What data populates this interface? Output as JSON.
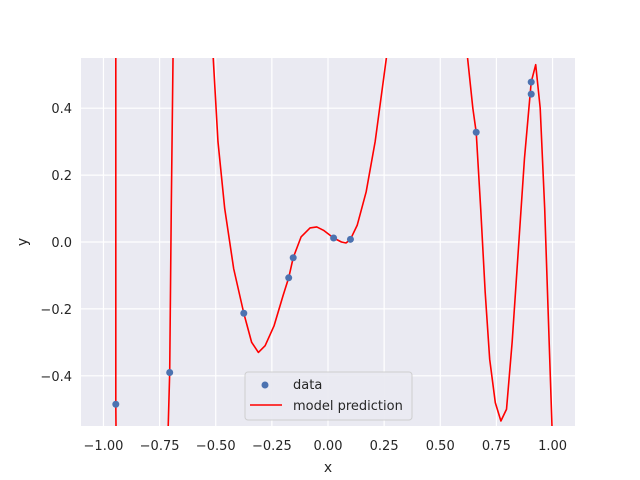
{
  "chart_data": {
    "type": "scatter",
    "title": "",
    "xlabel": "x",
    "ylabel": "y",
    "xlim": [
      -1.1,
      1.1
    ],
    "ylim": [
      -0.55,
      0.55
    ],
    "xticks": [
      -1.0,
      -0.75,
      -0.5,
      -0.25,
      0.0,
      0.25,
      0.5,
      0.75,
      1.0
    ],
    "xtick_labels": [
      "−1.00",
      "−0.75",
      "−0.50",
      "−0.25",
      "0.00",
      "0.25",
      "0.50",
      "0.75",
      "1.00"
    ],
    "yticks": [
      -0.4,
      -0.2,
      0.0,
      0.2,
      0.4
    ],
    "ytick_labels": [
      "−0.4",
      "−0.2",
      "0.0",
      "0.2",
      "0.4"
    ],
    "grid": true,
    "legend_position": "lower-center",
    "series": [
      {
        "name": "data",
        "kind": "scatter",
        "color": "#4c72b0",
        "points": [
          [
            -0.945,
            -0.485
          ],
          [
            -0.705,
            -0.39
          ],
          [
            -0.375,
            -0.213
          ],
          [
            -0.175,
            -0.107
          ],
          [
            -0.155,
            -0.047
          ],
          [
            0.025,
            0.012
          ],
          [
            0.1,
            0.008
          ],
          [
            0.66,
            0.328
          ],
          [
            0.905,
            0.442
          ],
          [
            0.905,
            0.478
          ]
        ]
      },
      {
        "name": "model prediction",
        "kind": "line",
        "color": "#ff0000",
        "points": [
          [
            -0.945,
            0.56
          ],
          [
            -0.945,
            -0.485
          ],
          [
            -0.944,
            -0.56
          ],
          [
            -0.712,
            -0.56
          ],
          [
            -0.705,
            -0.39
          ],
          [
            -0.698,
            0.1
          ],
          [
            -0.69,
            0.56
          ],
          [
            -0.512,
            0.56
          ],
          [
            -0.49,
            0.3
          ],
          [
            -0.46,
            0.1
          ],
          [
            -0.42,
            -0.08
          ],
          [
            -0.375,
            -0.213
          ],
          [
            -0.34,
            -0.3
          ],
          [
            -0.31,
            -0.33
          ],
          [
            -0.28,
            -0.31
          ],
          [
            -0.24,
            -0.25
          ],
          [
            -0.2,
            -0.16
          ],
          [
            -0.175,
            -0.107
          ],
          [
            -0.155,
            -0.047
          ],
          [
            -0.12,
            0.015
          ],
          [
            -0.08,
            0.042
          ],
          [
            -0.05,
            0.045
          ],
          [
            -0.02,
            0.035
          ],
          [
            0.025,
            0.012
          ],
          [
            0.06,
            0.0
          ],
          [
            0.08,
            -0.003
          ],
          [
            0.1,
            0.008
          ],
          [
            0.13,
            0.05
          ],
          [
            0.17,
            0.15
          ],
          [
            0.21,
            0.3
          ],
          [
            0.24,
            0.45
          ],
          [
            0.262,
            0.56
          ],
          [
            0.62,
            0.56
          ],
          [
            0.645,
            0.4
          ],
          [
            0.66,
            0.328
          ],
          [
            0.68,
            0.1
          ],
          [
            0.7,
            -0.15
          ],
          [
            0.72,
            -0.35
          ],
          [
            0.745,
            -0.48
          ],
          [
            0.77,
            -0.535
          ],
          [
            0.795,
            -0.5
          ],
          [
            0.82,
            -0.3
          ],
          [
            0.85,
            0.0
          ],
          [
            0.875,
            0.25
          ],
          [
            0.905,
            0.478
          ],
          [
            0.925,
            0.53
          ],
          [
            0.945,
            0.4
          ],
          [
            0.965,
            0.1
          ],
          [
            0.98,
            -0.2
          ],
          [
            0.995,
            -0.5
          ],
          [
            0.998,
            -0.56
          ]
        ]
      }
    ]
  },
  "colors": {
    "plot_background": "#eaeaf2",
    "grid": "#ffffff",
    "scatter": "#4c72b0",
    "line": "#ff0000"
  }
}
